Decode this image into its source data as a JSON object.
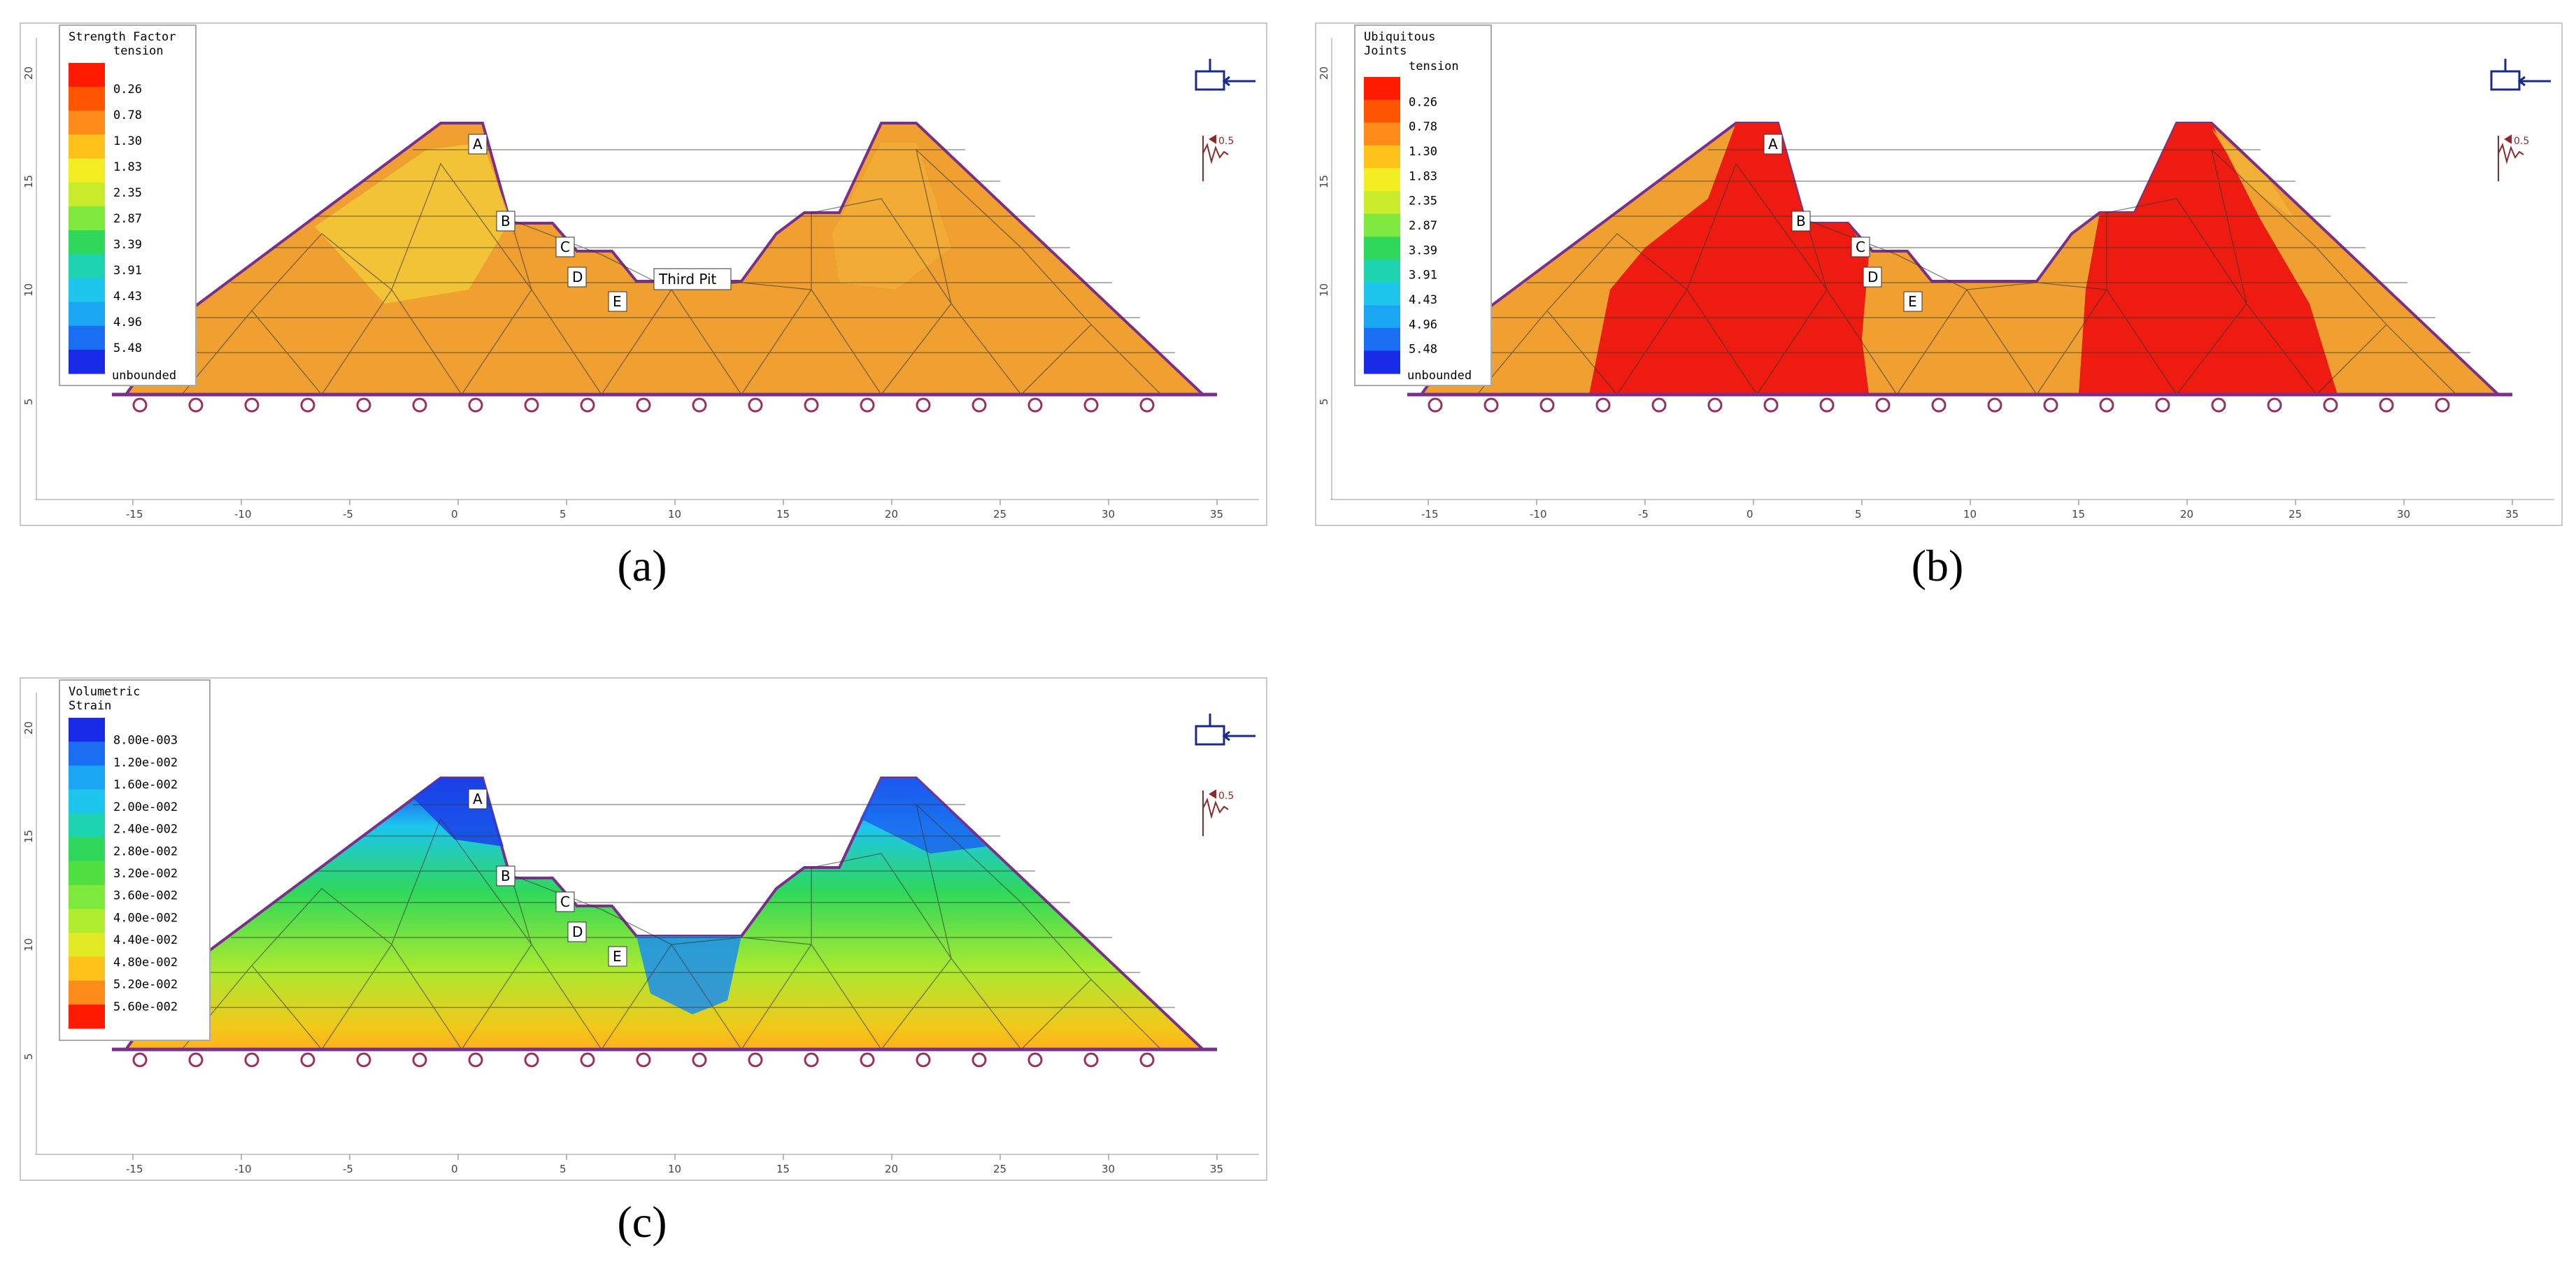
{
  "captions": [
    "(a)",
    "(b)",
    "(c)"
  ],
  "axis": {
    "x_ticks": [
      "-15",
      "-10",
      "-5",
      "0",
      "5",
      "10",
      "15",
      "20",
      "25",
      "30",
      "35"
    ],
    "y_ticks": [
      "5",
      "10",
      "15",
      "20"
    ]
  },
  "points": [
    "A",
    "B",
    "C",
    "D",
    "E"
  ],
  "seismic_label": "0.5",
  "panels": [
    {
      "legend_title": [
        "Strength Factor",
        "tension"
      ],
      "legend_values": [
        "0.26",
        "0.78",
        "1.30",
        "1.83",
        "2.35",
        "2.87",
        "3.39",
        "3.91",
        "4.43",
        "4.96",
        "5.48"
      ],
      "legend_end": "unbounded",
      "colors": [
        "#ff1a00",
        "#ff5500",
        "#ff8c1a",
        "#ffc21a",
        "#f2ee22",
        "#c8ec2c",
        "#7ee83c",
        "#2fd85a",
        "#1ed3b0",
        "#1ec6ee",
        "#1aa6f2",
        "#1a6ef2",
        "#1a2be8"
      ],
      "pit_label": "Third Pit",
      "fill_color": "#f0a030",
      "highlight_color": "#f3cd3a"
    },
    {
      "legend_title": [
        "Ubiquitous",
        "Joints"
      ],
      "legend_first": "tension",
      "legend_values": [
        "0.26",
        "0.78",
        "1.30",
        "1.83",
        "2.35",
        "2.87",
        "3.39",
        "3.91",
        "4.43",
        "4.96",
        "5.48"
      ],
      "legend_end": "unbounded",
      "colors": [
        "#ff1a00",
        "#ff5500",
        "#ff8c1a",
        "#ffc21a",
        "#f2ee22",
        "#c8ec2c",
        "#7ee83c",
        "#2fd85a",
        "#1ed3b0",
        "#1ec6ee",
        "#1aa6f2",
        "#1a6ef2",
        "#1a2be8"
      ],
      "fill_color": "#f0a030",
      "red_color": "#ee1c10"
    },
    {
      "legend_title": [
        "Volumetric",
        "Strain"
      ],
      "legend_values": [
        "8.00e-003",
        "1.20e-002",
        "1.60e-002",
        "2.00e-002",
        "2.40e-002",
        "2.80e-002",
        "3.20e-002",
        "3.60e-002",
        "4.00e-002",
        "4.40e-002",
        "4.80e-002",
        "5.20e-002",
        "5.60e-002"
      ],
      "colors": [
        "#1a2be8",
        "#1a6ef2",
        "#1aa6f2",
        "#1ec6ee",
        "#1ed3b0",
        "#2fd85a",
        "#50e040",
        "#7ee83c",
        "#b0ec30",
        "#e2ea26",
        "#ffc21a",
        "#ff8c1a",
        "#ff1a00"
      ]
    }
  ]
}
